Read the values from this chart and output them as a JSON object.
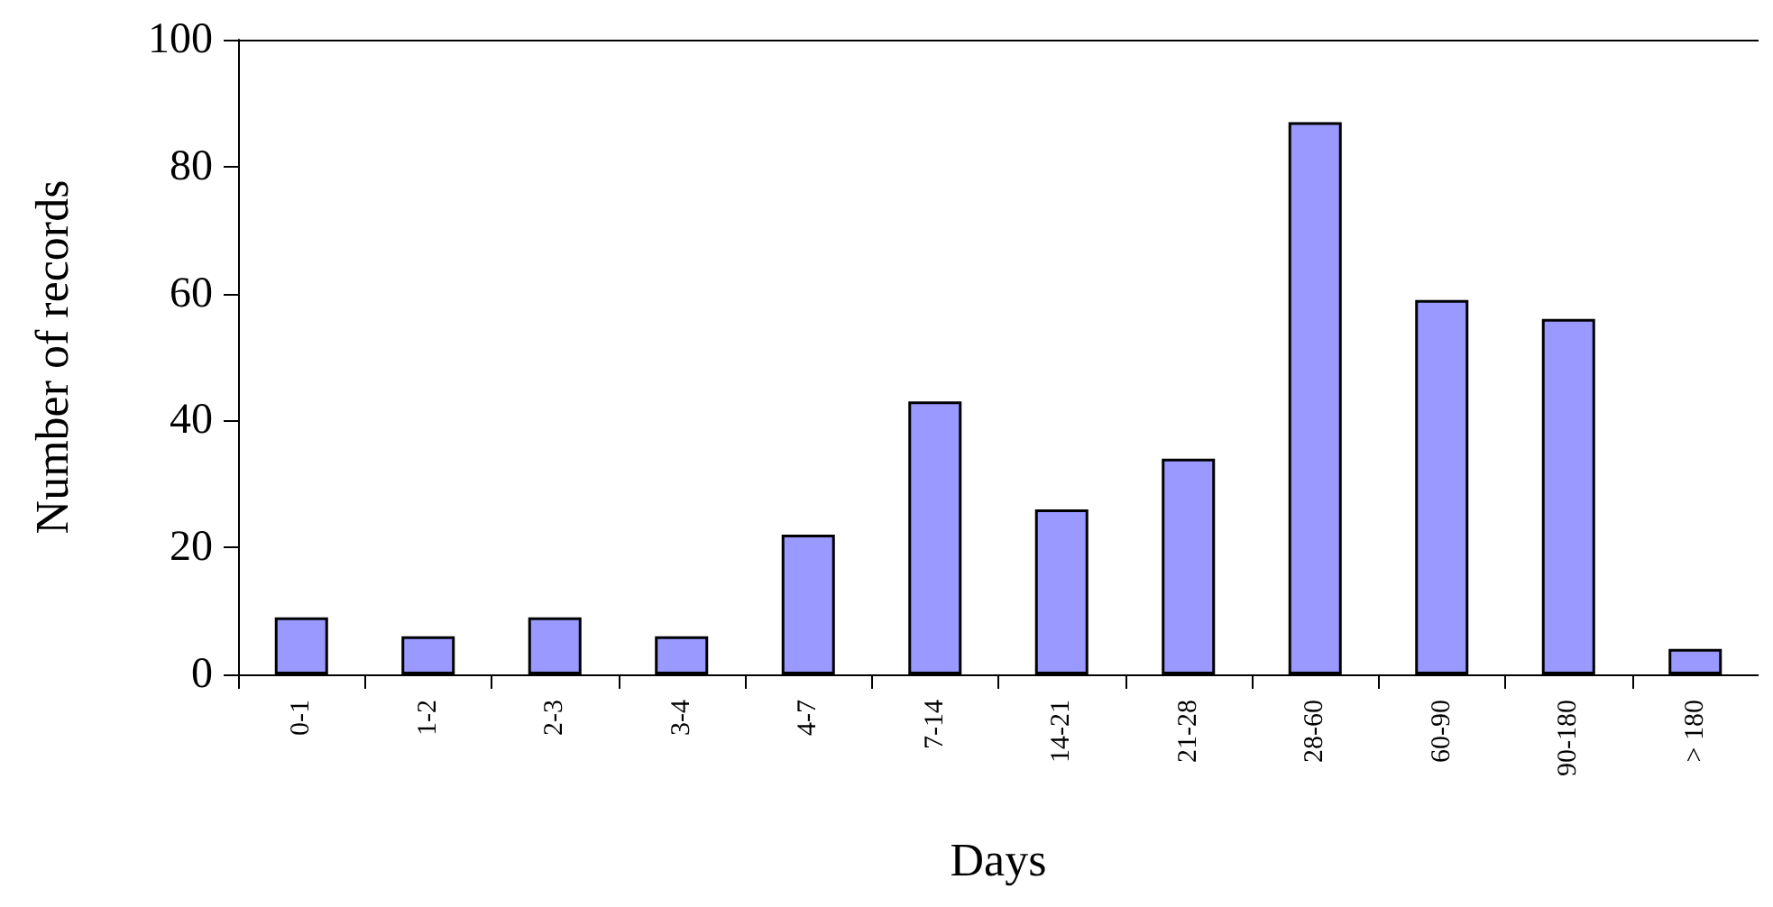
{
  "chart_data": {
    "type": "bar",
    "xlabel": "Days",
    "ylabel": "Number of records",
    "categories": [
      "0-1",
      "1-2",
      "2-3",
      "3-4",
      "4-7",
      "7-14",
      "14-21",
      "21-28",
      "28-60",
      "60-90",
      "90-180",
      "> 180"
    ],
    "values": [
      9,
      6,
      9,
      6,
      22,
      43,
      26,
      34,
      87,
      59,
      56,
      4
    ],
    "color": "#9999ff",
    "ylim": [
      0,
      100
    ],
    "yticks": [
      0,
      20,
      40,
      60,
      80,
      100
    ],
    "grid": false
  }
}
